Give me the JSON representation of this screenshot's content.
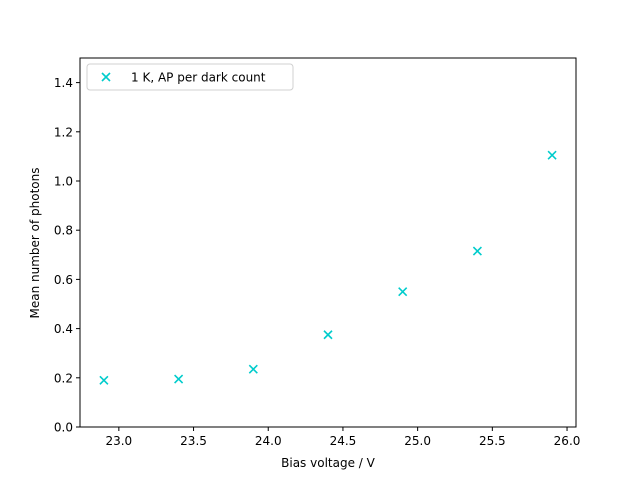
{
  "chart_data": {
    "type": "scatter",
    "title": "",
    "xlabel": "Bias voltage / V",
    "ylabel": "Mean number of photons",
    "xlim": [
      22.74,
      26.06
    ],
    "ylim": [
      0.0,
      1.5
    ],
    "xticks": [
      "23.0",
      "23.5",
      "24.0",
      "24.5",
      "25.0",
      "25.5",
      "26.0"
    ],
    "xtick_values": [
      23.0,
      23.5,
      24.0,
      24.5,
      25.0,
      25.5,
      26.0
    ],
    "yticks": [
      "0.0",
      "0.2",
      "0.4",
      "0.6",
      "0.8",
      "1.0",
      "1.2",
      "1.4"
    ],
    "ytick_values": [
      0.0,
      0.2,
      0.4,
      0.6,
      0.8,
      1.0,
      1.2,
      1.4
    ],
    "grid": false,
    "legend_position": "top-left",
    "series": [
      {
        "name": "1 K, AP per dark count",
        "marker": "x",
        "color": "#00cccc",
        "x": [
          22.9,
          23.4,
          23.9,
          24.4,
          24.9,
          25.4,
          25.9
        ],
        "y": [
          0.19,
          0.195,
          0.235,
          0.375,
          0.55,
          0.715,
          1.105
        ]
      }
    ]
  }
}
